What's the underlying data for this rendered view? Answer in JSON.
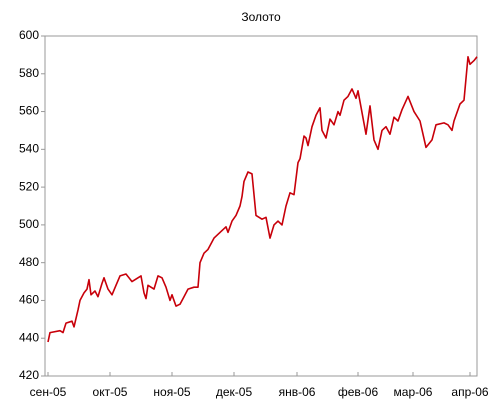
{
  "chart_data": {
    "type": "line",
    "title": "Золото",
    "x": [
      1.5,
      2.5,
      7.5,
      9,
      10.5,
      13.5,
      14.5,
      16.5,
      17.5,
      19.5,
      21,
      22,
      23,
      25,
      26.5,
      28.5,
      29.5,
      31.5,
      33.5,
      35.5,
      37.5,
      40.5,
      43.5,
      46.5,
      48,
      49.5,
      50.5,
      51.5,
      54.5,
      56.5,
      58.5,
      60.5,
      62.5,
      63.5,
      65.5,
      67.5,
      69.5,
      71.5,
      74.5,
      76.5,
      77.5,
      79.5,
      81.5,
      84.5,
      87.5,
      90.5,
      91.5,
      93.5,
      95.5,
      97.5,
      98.5,
      99.5,
      101.5,
      103.5,
      105.5,
      108.5,
      110.5,
      112.5,
      114.5,
      116.5,
      118.5,
      120.5,
      122.5,
      124.5,
      126.5,
      127.5,
      129.5,
      130.5,
      131.5,
      133.5,
      135.5,
      137.5,
      138.5,
      140.5,
      142.5,
      144.5,
      146.5,
      147.5,
      149.5,
      151.5,
      153.5,
      155.5,
      156.5,
      160.5,
      162.5,
      164.5,
      166.5,
      168.5,
      170.5,
      172.5,
      174.5,
      176.5,
      178.5,
      181.5,
      184.5,
      187.5,
      190.5,
      193.5,
      195.5,
      199.5,
      201.5,
      203.5,
      204.5,
      207.5,
      209.5,
      211.5,
      212.5,
      214.5,
      216
    ],
    "series": [
      {
        "name": "Золото",
        "color": "#c8000a",
        "values": [
          438,
          443,
          444,
          443,
          448,
          449,
          446,
          455,
          460,
          464,
          466,
          471,
          463,
          465,
          462,
          469,
          472,
          466,
          463,
          468,
          473,
          474,
          470,
          472,
          473,
          464,
          461,
          468,
          466,
          473,
          472,
          467,
          460,
          463,
          457,
          458,
          462,
          466,
          467,
          467,
          480,
          485,
          487,
          493,
          496,
          499,
          496,
          502,
          505,
          510,
          515,
          523,
          528,
          527,
          505,
          503,
          504,
          493,
          500,
          502,
          500,
          510,
          517,
          516,
          533,
          535,
          547,
          546,
          542,
          552,
          558,
          562,
          550,
          546,
          556,
          553,
          560,
          558,
          566,
          568,
          572,
          567,
          571,
          548,
          563,
          545,
          540,
          550,
          552,
          548,
          557,
          555,
          561,
          568,
          560,
          555,
          541,
          545,
          553,
          554,
          553,
          550,
          555,
          564,
          566,
          589,
          585,
          587,
          589
        ]
      }
    ],
    "xlim": [
      0,
      216
    ],
    "xticks": [
      {
        "value": 1.5,
        "label": "сен-05"
      },
      {
        "value": 32.5,
        "label": "окт-05"
      },
      {
        "value": 63.5,
        "label": "ноя-05"
      },
      {
        "value": 94.5,
        "label": "дек-05"
      },
      {
        "value": 126,
        "label": "янв-06"
      },
      {
        "value": 156.5,
        "label": "фев-06"
      },
      {
        "value": 184,
        "label": "мар-06"
      },
      {
        "value": 212.5,
        "label": "апр-06"
      }
    ],
    "ylim": [
      420,
      600
    ],
    "yticks": [
      420,
      440,
      460,
      480,
      500,
      520,
      540,
      560,
      580,
      600
    ],
    "grid": false
  }
}
